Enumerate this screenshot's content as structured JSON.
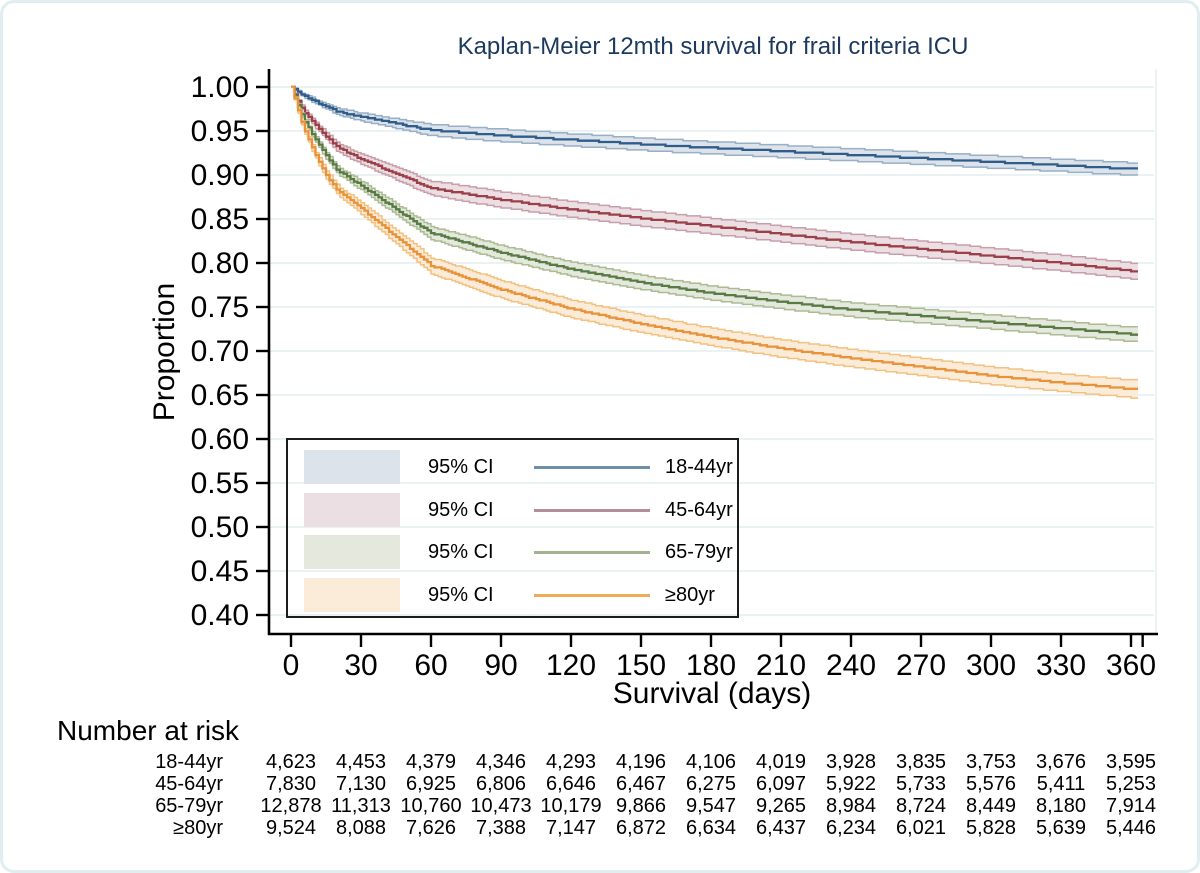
{
  "chart_data": {
    "type": "line",
    "title": "Kaplan-Meier 12mth survival for frail criteria ICU",
    "title_color": "#1b3a5e",
    "xlabel": "Survival (days)",
    "ylabel": "Proportion",
    "xlim": [
      0,
      365
    ],
    "ylim": [
      0.4,
      1.0
    ],
    "x_ticks": [
      0,
      30,
      60,
      90,
      120,
      150,
      180,
      210,
      240,
      270,
      300,
      330,
      360
    ],
    "y_ticks": [
      "1.00",
      "0.95",
      "0.90",
      "0.85",
      "0.80",
      "0.75",
      "0.70",
      "0.65",
      "0.60",
      "0.55",
      "0.50",
      "0.45",
      "0.40"
    ],
    "grid": true,
    "legend_position": "inside-lower-left",
    "ci_label": "95% CI",
    "x": [
      0,
      5,
      10,
      15,
      20,
      30,
      60,
      90,
      120,
      150,
      180,
      210,
      240,
      270,
      300,
      330,
      360
    ],
    "series": [
      {
        "name": "18-44yr",
        "values": [
          1.0,
          0.991,
          0.984,
          0.978,
          0.972,
          0.966,
          0.951,
          0.945,
          0.94,
          0.935,
          0.931,
          0.927,
          0.923,
          0.919,
          0.915,
          0.911,
          0.907
        ],
        "ci_halfwidth": 0.007,
        "line_color": "#2f5c8a",
        "band_color": "#dde3ea",
        "edge_color": "#98afc6",
        "legend_line_color": "#6d8fac"
      },
      {
        "name": "45-64yr",
        "values": [
          1.0,
          0.974,
          0.958,
          0.944,
          0.931,
          0.918,
          0.885,
          0.872,
          0.861,
          0.851,
          0.842,
          0.833,
          0.824,
          0.816,
          0.808,
          0.8,
          0.791
        ],
        "ci_halfwidth": 0.009,
        "line_color": "#9b4049",
        "band_color": "#ecdfe3",
        "edge_color": "#c79fa9",
        "legend_line_color": "#b18f99"
      },
      {
        "name": "65-79yr",
        "values": [
          1.0,
          0.965,
          0.942,
          0.922,
          0.905,
          0.888,
          0.834,
          0.812,
          0.793,
          0.778,
          0.766,
          0.756,
          0.747,
          0.74,
          0.733,
          0.726,
          0.719
        ],
        "ci_halfwidth": 0.008,
        "line_color": "#587a44",
        "band_color": "#e5e8dc",
        "edge_color": "#abbb93",
        "legend_line_color": "#a3b28c"
      },
      {
        "name": "≥80yr",
        "values": [
          1.0,
          0.955,
          0.925,
          0.9,
          0.882,
          0.862,
          0.797,
          0.77,
          0.748,
          0.731,
          0.716,
          0.703,
          0.692,
          0.682,
          0.672,
          0.664,
          0.657
        ],
        "ci_halfwidth": 0.01,
        "line_color": "#e8923a",
        "band_color": "#faecd8",
        "edge_color": "#f2c180",
        "legend_line_color": "#efab56"
      }
    ]
  },
  "risk_table": {
    "heading": "Number at risk",
    "time_points": [
      0,
      30,
      60,
      90,
      120,
      150,
      180,
      210,
      240,
      270,
      300,
      330,
      360
    ],
    "rows": [
      {
        "label": "18-44yr",
        "counts": [
          "4,623",
          "4,453",
          "4,379",
          "4,346",
          "4,293",
          "4,196",
          "4,106",
          "4,019",
          "3,928",
          "3,835",
          "3,753",
          "3,676",
          "3,595"
        ]
      },
      {
        "label": "45-64yr",
        "counts": [
          "7,830",
          "7,130",
          "6,925",
          "6,806",
          "6,646",
          "6,467",
          "6,275",
          "6,097",
          "5,922",
          "5,733",
          "5,576",
          "5,411",
          "5,253"
        ]
      },
      {
        "label": "65-79yr",
        "counts": [
          "12,878",
          "11,313",
          "10,760",
          "10,473",
          "10,179",
          "9,866",
          "9,547",
          "9,265",
          "8,984",
          "8,724",
          "8,449",
          "8,180",
          "7,914"
        ]
      },
      {
        "label": "≥80yr",
        "counts": [
          "9,524",
          "8,088",
          "7,626",
          "7,388",
          "7,147",
          "6,872",
          "6,634",
          "6,437",
          "6,234",
          "6,021",
          "5,828",
          "5,639",
          "5,446"
        ]
      }
    ]
  },
  "style": {
    "grid_color": "#e7f0f2",
    "axis_color": "#000000"
  }
}
